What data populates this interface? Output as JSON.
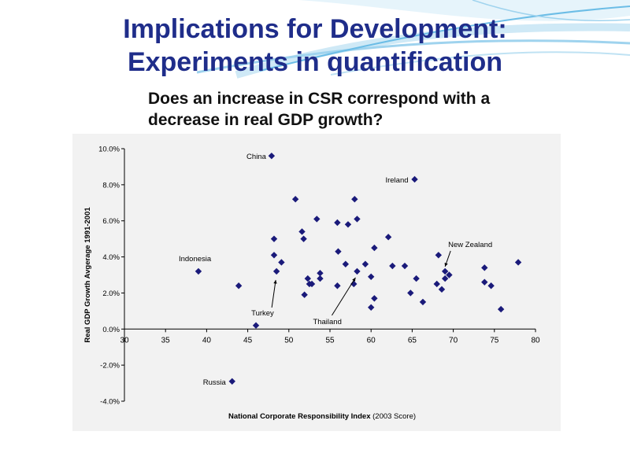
{
  "slide": {
    "title_line1": "Implications for Development:",
    "title_line2": "Experiments in quantification",
    "question": "Does an increase in CSR correspond with a decrease in real GDP growth?"
  },
  "colors": {
    "title": "#1f2d8a",
    "marker": "#1a1a7a",
    "panel": "#f2f2f2",
    "wave_light": "#cfe9f6",
    "wave_mid": "#9fd3ee",
    "wave_dark": "#6cbde6"
  },
  "chart_data": {
    "type": "scatter",
    "title": "",
    "xlabel_bold": "National Corporate Responsibility Index",
    "xlabel_rest": " (2003 Score)",
    "ylabel": "Real GDP Growth Avgerage 1991-2001",
    "xlim": [
      30,
      80
    ],
    "ylim": [
      -4.0,
      10.0
    ],
    "xticks": [
      30,
      35,
      40,
      45,
      50,
      55,
      60,
      65,
      70,
      75,
      80
    ],
    "yticks": [
      -4.0,
      -2.0,
      0.0,
      2.0,
      4.0,
      6.0,
      8.0,
      10.0
    ],
    "ytick_labels": [
      "-4.0%",
      "-2.0%",
      "0.0%",
      "2.0%",
      "4.0%",
      "6.0%",
      "8.0%",
      "10.0%"
    ],
    "grid": false,
    "points": [
      {
        "x": 47.9,
        "y": 9.6
      },
      {
        "x": 65.3,
        "y": 8.3
      },
      {
        "x": 39.0,
        "y": 3.2
      },
      {
        "x": 43.9,
        "y": 2.4
      },
      {
        "x": 46.0,
        "y": 0.2
      },
      {
        "x": 43.1,
        "y": -2.9
      },
      {
        "x": 48.2,
        "y": 5.0
      },
      {
        "x": 48.2,
        "y": 4.1
      },
      {
        "x": 48.5,
        "y": 3.2
      },
      {
        "x": 49.1,
        "y": 3.7
      },
      {
        "x": 50.8,
        "y": 7.2
      },
      {
        "x": 51.6,
        "y": 5.4
      },
      {
        "x": 51.8,
        "y": 5.0
      },
      {
        "x": 51.9,
        "y": 1.9
      },
      {
        "x": 52.3,
        "y": 2.8
      },
      {
        "x": 52.5,
        "y": 2.5
      },
      {
        "x": 52.8,
        "y": 2.5
      },
      {
        "x": 53.4,
        "y": 6.1
      },
      {
        "x": 53.8,
        "y": 3.1
      },
      {
        "x": 53.8,
        "y": 2.8
      },
      {
        "x": 55.9,
        "y": 5.9
      },
      {
        "x": 56.0,
        "y": 4.3
      },
      {
        "x": 55.9,
        "y": 2.4
      },
      {
        "x": 56.9,
        "y": 3.6
      },
      {
        "x": 57.2,
        "y": 5.8
      },
      {
        "x": 57.9,
        "y": 2.5
      },
      {
        "x": 58.0,
        "y": 7.2
      },
      {
        "x": 58.3,
        "y": 6.1
      },
      {
        "x": 58.3,
        "y": 3.2
      },
      {
        "x": 59.3,
        "y": 3.6
      },
      {
        "x": 60.0,
        "y": 2.9
      },
      {
        "x": 60.0,
        "y": 1.2
      },
      {
        "x": 60.4,
        "y": 4.5
      },
      {
        "x": 60.4,
        "y": 1.7
      },
      {
        "x": 62.1,
        "y": 5.1
      },
      {
        "x": 62.6,
        "y": 3.5
      },
      {
        "x": 64.1,
        "y": 3.5
      },
      {
        "x": 64.8,
        "y": 2.0
      },
      {
        "x": 65.5,
        "y": 2.8
      },
      {
        "x": 66.3,
        "y": 1.5
      },
      {
        "x": 68.2,
        "y": 4.1
      },
      {
        "x": 68.0,
        "y": 2.5
      },
      {
        "x": 68.6,
        "y": 2.2
      },
      {
        "x": 69.0,
        "y": 3.2
      },
      {
        "x": 69.0,
        "y": 2.8
      },
      {
        "x": 69.5,
        "y": 3.0
      },
      {
        "x": 73.8,
        "y": 3.4
      },
      {
        "x": 73.8,
        "y": 2.6
      },
      {
        "x": 74.6,
        "y": 2.4
      },
      {
        "x": 75.8,
        "y": 1.1
      },
      {
        "x": 77.9,
        "y": 3.7
      }
    ],
    "annotations": [
      {
        "label": "China",
        "x": 47.9,
        "y": 9.6,
        "arrow": false
      },
      {
        "label": "Ireland",
        "x": 65.3,
        "y": 8.3,
        "arrow": false
      },
      {
        "label": "Indonesia",
        "x": 39.0,
        "y": 3.2,
        "arrow": false
      },
      {
        "label": "Russia",
        "x": 43.1,
        "y": -2.9,
        "arrow": false
      },
      {
        "label": "Turkey",
        "x": 48.5,
        "y": 3.2,
        "arrow": true
      },
      {
        "label": "Thailand",
        "x": 58.3,
        "y": 3.2,
        "arrow": true
      },
      {
        "label": "New Zealand",
        "x": 69.0,
        "y": 3.2,
        "arrow": true
      }
    ]
  }
}
